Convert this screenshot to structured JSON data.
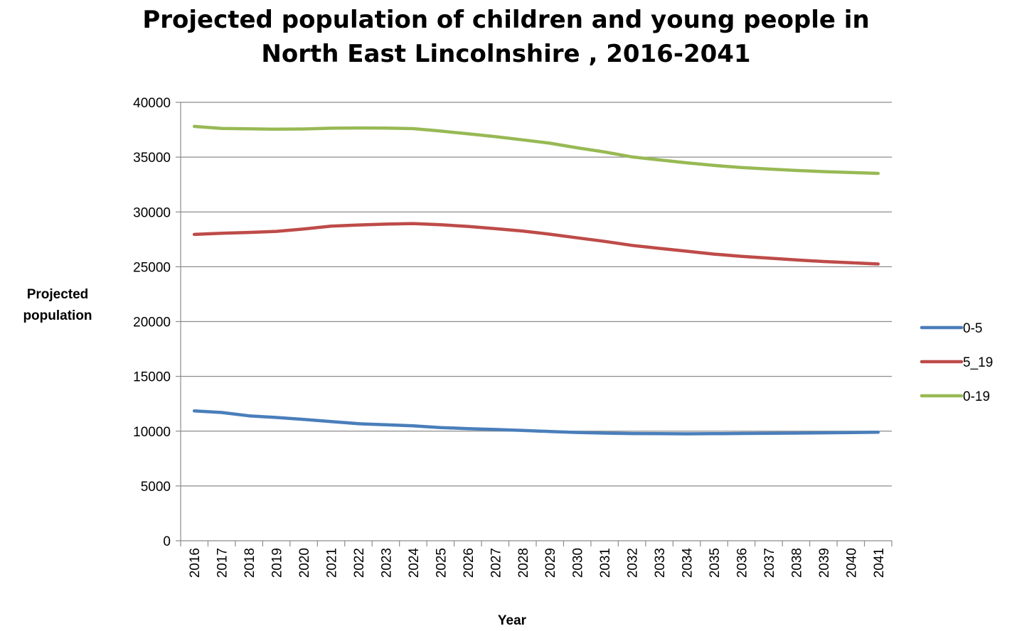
{
  "chart_data": {
    "type": "line",
    "title": [
      "Projected population of children and young people in",
      "North East Lincolnshire , 2016-2041"
    ],
    "xlabel": "Year",
    "ylabel": [
      "Projected",
      "population"
    ],
    "ylim": [
      0,
      40000
    ],
    "yticks": [
      "0",
      "5000",
      "10000",
      "15000",
      "20000",
      "25000",
      "30000",
      "35000",
      "40000"
    ],
    "grid": true,
    "legend_position": "right",
    "categories": [
      "2016",
      "2017",
      "2018",
      "2019",
      "2020",
      "2021",
      "2022",
      "2023",
      "2024",
      "2025",
      "2026",
      "2027",
      "2028",
      "2029",
      "2030",
      "2031",
      "2032",
      "2033",
      "2034",
      "2035",
      "2036",
      "2037",
      "2038",
      "2039",
      "2040",
      "2041"
    ],
    "series": [
      {
        "name": "0-5",
        "color": "#4a7ebb",
        "values": [
          11850,
          11700,
          11400,
          11250,
          11070,
          10870,
          10680,
          10580,
          10480,
          10330,
          10230,
          10150,
          10060,
          9970,
          9880,
          9820,
          9780,
          9770,
          9760,
          9770,
          9790,
          9800,
          9820,
          9850,
          9870,
          9900
        ]
      },
      {
        "name": "5_19",
        "color": "#be4b48",
        "values": [
          27950,
          28050,
          28130,
          28230,
          28450,
          28700,
          28810,
          28890,
          28940,
          28830,
          28680,
          28480,
          28260,
          27970,
          27640,
          27310,
          26950,
          26680,
          26420,
          26150,
          25950,
          25780,
          25620,
          25480,
          25360,
          25250
        ]
      },
      {
        "name": "0-19",
        "color": "#98b954",
        "values": [
          37800,
          37620,
          37580,
          37550,
          37570,
          37640,
          37660,
          37650,
          37600,
          37380,
          37130,
          36870,
          36580,
          36270,
          35850,
          35470,
          35020,
          34750,
          34480,
          34240,
          34050,
          33910,
          33780,
          33680,
          33600,
          33520
        ]
      }
    ]
  }
}
